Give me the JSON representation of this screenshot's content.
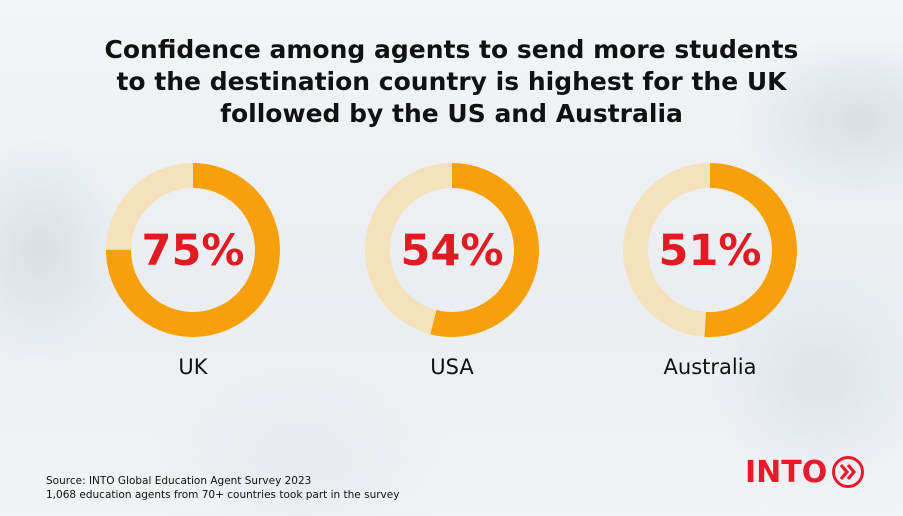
{
  "title": {
    "line1": "Confidence among agents to send more students",
    "line2": "to the destination country is highest for the UK",
    "line3": "followed by the US and Australia"
  },
  "chart_data": {
    "type": "pie",
    "title": "Confidence among agents to send more students to the destination country is highest for the UK followed by the US and Australia",
    "series": [
      {
        "name": "UK",
        "value": 75,
        "label": "75%"
      },
      {
        "name": "USA",
        "value": 54,
        "label": "54%"
      },
      {
        "name": "Australia",
        "value": 51,
        "label": "51%"
      }
    ],
    "unit": "%",
    "max": 100,
    "colors": {
      "filled": "#f7a00a",
      "remaining": "#f6e1bd",
      "value_text": "#e11b22"
    }
  },
  "source": {
    "line1": "Source: INTO Global Education Agent Survey 2023",
    "line2": "1,068 education agents from 70+ countries took part in the survey"
  },
  "logo": {
    "text": "INTO",
    "icon": "double-chevron-right-icon",
    "color": "#e8192c"
  }
}
